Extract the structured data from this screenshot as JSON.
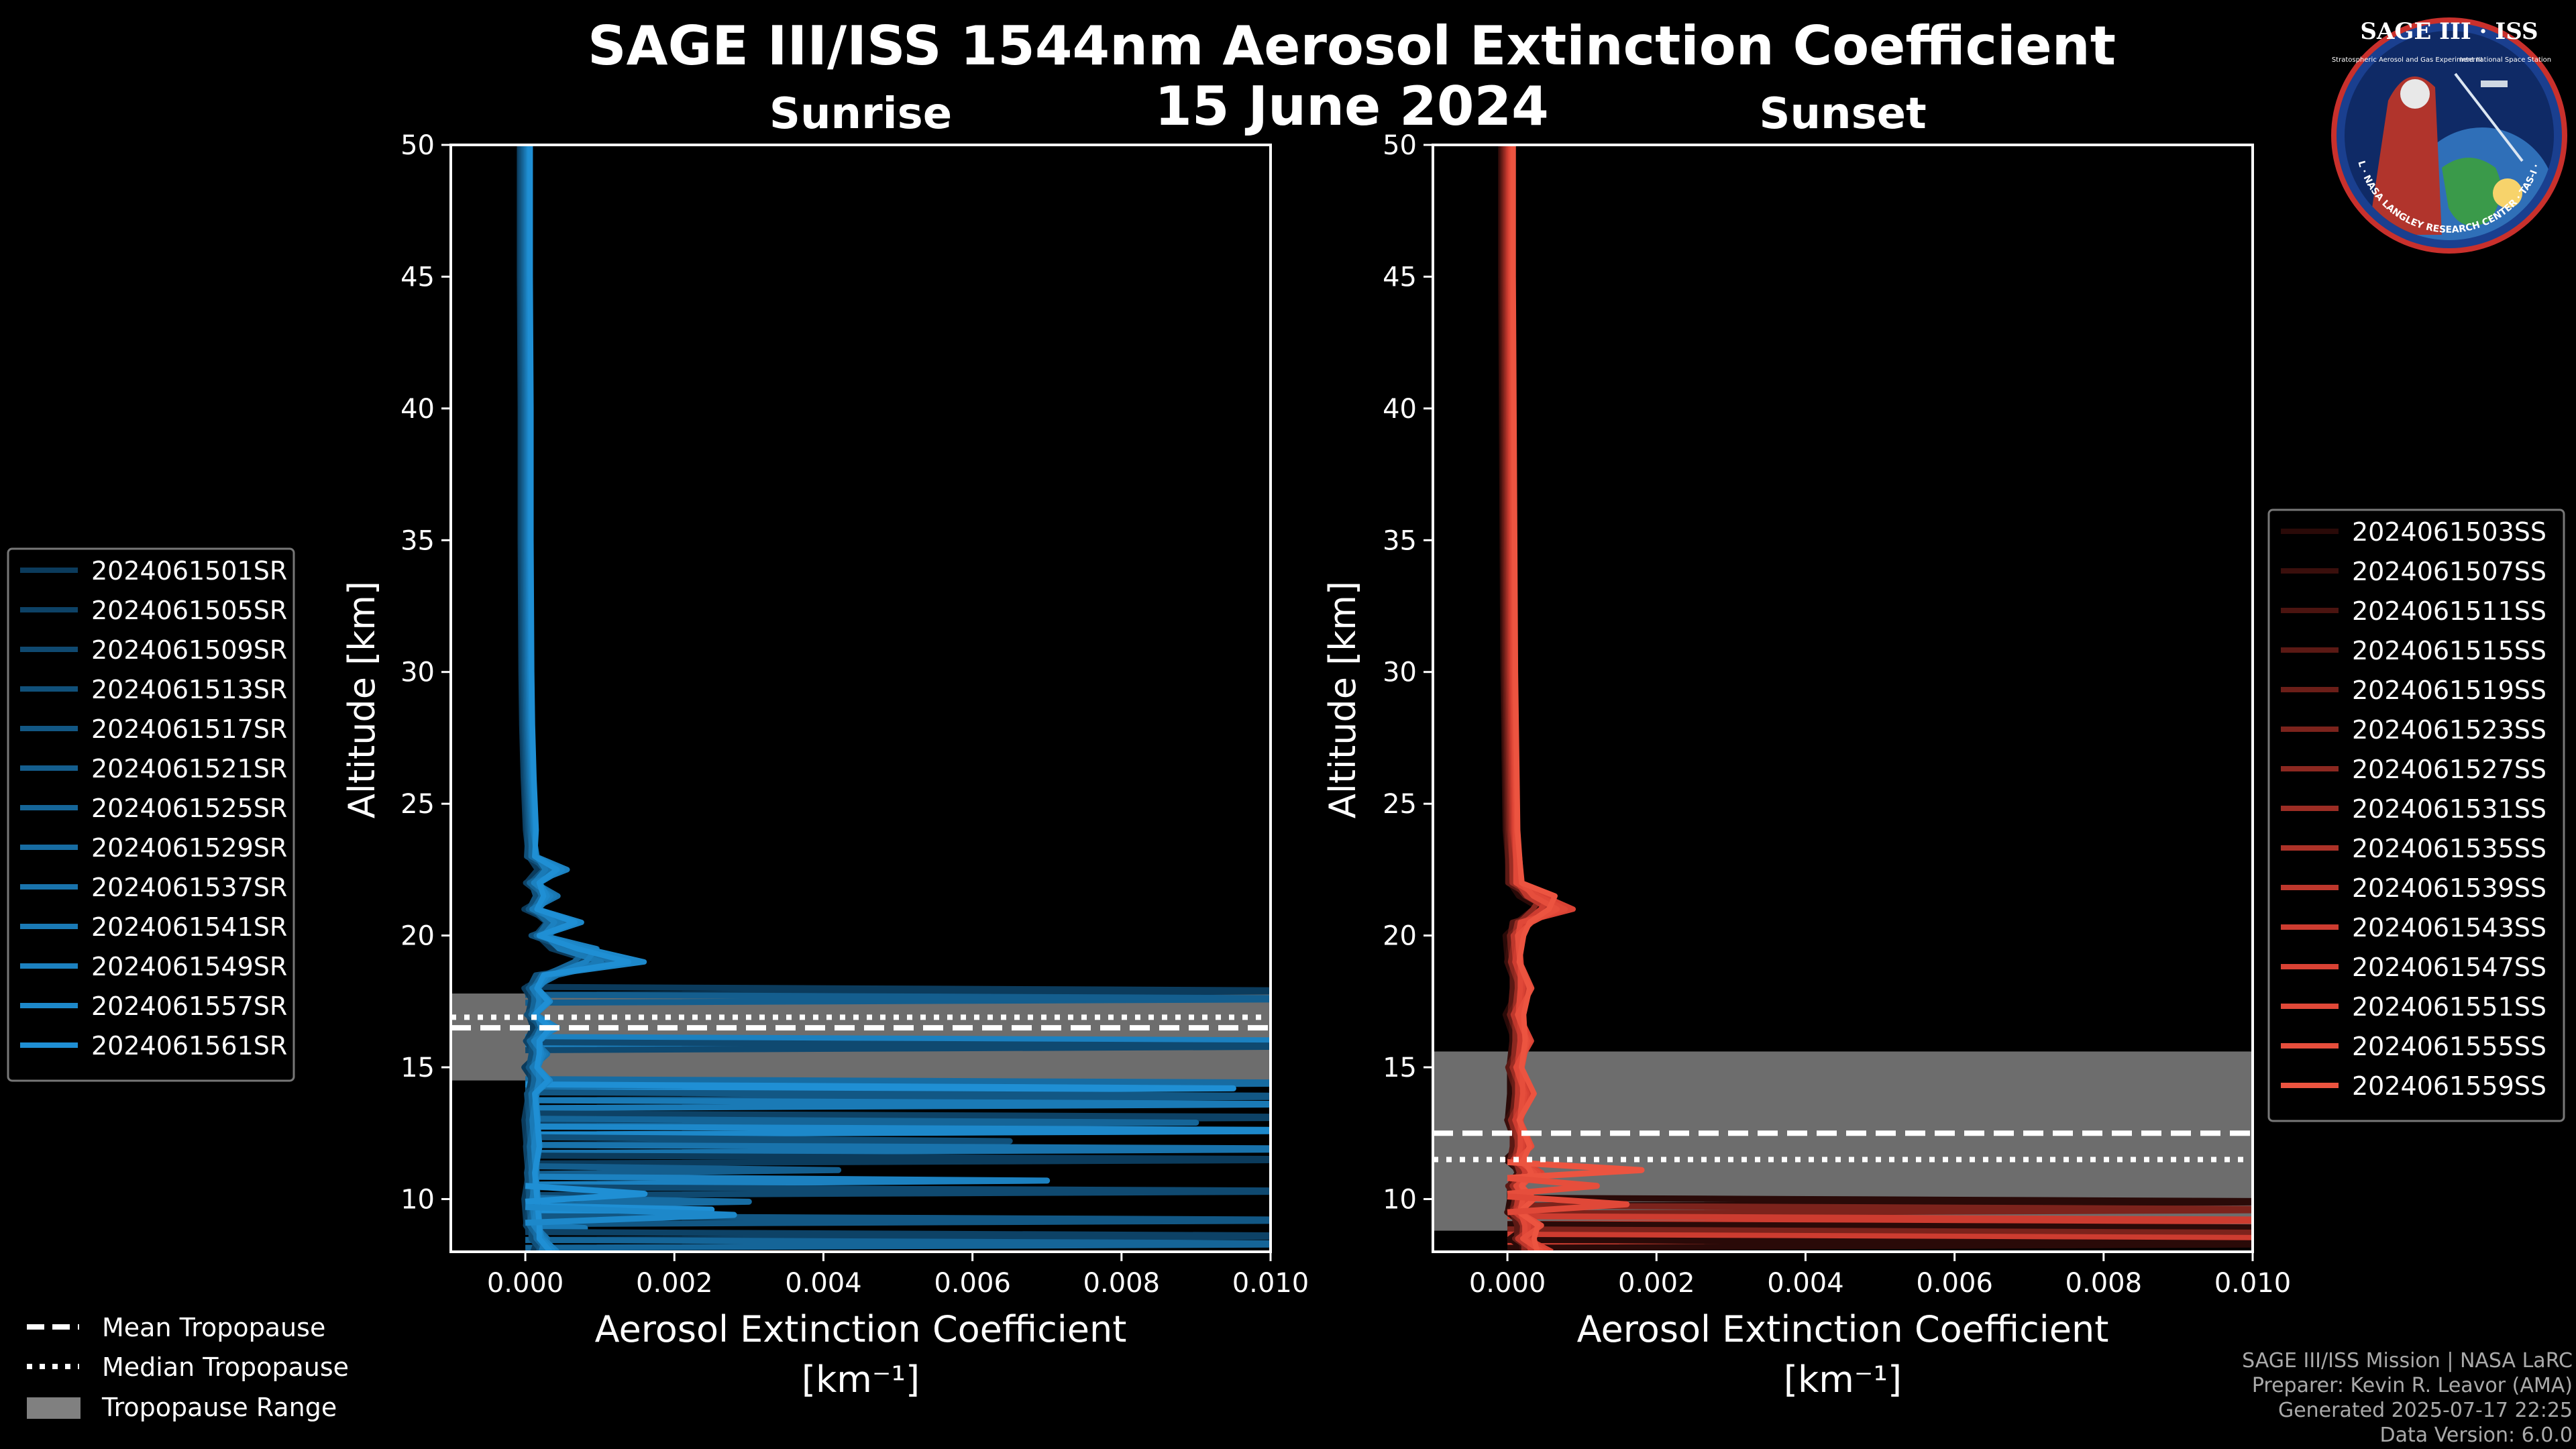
{
  "figure": {
    "title_line1": "SAGE III/ISS 1544nm Aerosol Extinction Coefficient",
    "title_line2": "15 June 2024",
    "logo": {
      "top_text": "SAGE III · ISS",
      "ring_text": "BALL · NASA LANGLEY RESEARCH CENTER · TAS-I · ESA",
      "small_left": "Stratospheric Aerosol and Gas Experiment III",
      "small_right": "International Space Station"
    },
    "credits": [
      "SAGE III/ISS Mission | NASA LaRC",
      "Preparer: Kevin R. Leavor (AMA)",
      "Generated 2025-07-17 22:25",
      "Data Version: 6.0.0"
    ],
    "shared_legend": [
      {
        "label": "Mean Tropopause",
        "style": "dashed"
      },
      {
        "label": "Median Tropopause",
        "style": "dotted"
      },
      {
        "label": "Tropopause Range",
        "style": "patch",
        "color": "#808080"
      }
    ]
  },
  "chart_data": [
    {
      "type": "line",
      "title": "Sunrise",
      "xlabel": "Aerosol Extinction Coefficient",
      "xunit": "[km⁻¹]",
      "ylabel": "Altitude [km]",
      "xlim": [
        -0.001,
        0.01
      ],
      "ylim": [
        8,
        50
      ],
      "xticks": [
        0.0,
        0.002,
        0.004,
        0.006,
        0.008,
        0.01
      ],
      "xtick_labels": [
        "0.000",
        "0.002",
        "0.004",
        "0.006",
        "0.008",
        "0.010"
      ],
      "yticks": [
        10,
        15,
        20,
        25,
        30,
        35,
        40,
        45,
        50
      ],
      "tropopause": {
        "mean": 16.5,
        "median": 16.9,
        "range": [
          14.5,
          17.8
        ]
      },
      "base_color": "#1b8fd4",
      "series_names": [
        "2024061501SR",
        "2024061505SR",
        "2024061509SR",
        "2024061513SR",
        "2024061517SR",
        "2024061521SR",
        "2024061525SR",
        "2024061529SR",
        "2024061537SR",
        "2024061541SR",
        "2024061549SR",
        "2024061557SR",
        "2024061561SR"
      ],
      "series_colors": [
        "#0b3b5c",
        "#0d4266",
        "#0f4970",
        "#10507a",
        "#125784",
        "#145e8e",
        "#156598",
        "#176ca2",
        "#1973ac",
        "#1a7ab6",
        "#1c81c0",
        "#1d88ca",
        "#1f8fd4"
      ],
      "profile": {
        "alt": [
          50,
          45,
          40,
          35,
          30,
          28,
          26,
          24,
          23,
          22.5,
          22,
          21.5,
          21,
          20.5,
          20,
          19.5,
          19,
          18.5,
          18,
          17.5,
          17,
          16.5,
          16,
          15.5,
          15,
          14.5,
          14,
          13,
          12,
          11,
          10,
          9,
          8.5,
          8
        ],
        "ext": [
          0.0,
          0.0,
          1e-05,
          1e-05,
          2e-05,
          3e-05,
          5e-05,
          8e-05,
          0.0001,
          0.0004,
          0.0001,
          0.0003,
          0.0001,
          0.0005,
          0.0002,
          0.0007,
          0.0011,
          0.0003,
          0.0001,
          0.0002,
          0.0001,
          0.0003,
          0.0001,
          0.0002,
          0.0001,
          0.0002,
          0.0001,
          0.0001,
          0.0001,
          0.0001,
          0.0001,
          0.0001,
          0.0002,
          0.0003
        ]
      },
      "excursions": [
        {
          "alt": 17.9,
          "ext": 0.012
        },
        {
          "alt": 17.6,
          "ext": 0.012
        },
        {
          "alt": 16.0,
          "ext": 0.012
        },
        {
          "alt": 15.8,
          "ext": 0.012
        },
        {
          "alt": 14.4,
          "ext": 0.012
        },
        {
          "alt": 14.2,
          "ext": 0.0095
        },
        {
          "alt": 13.9,
          "ext": 0.012
        },
        {
          "alt": 13.6,
          "ext": 0.011
        },
        {
          "alt": 13.1,
          "ext": 0.012
        },
        {
          "alt": 12.9,
          "ext": 0.009
        },
        {
          "alt": 12.6,
          "ext": 0.012
        },
        {
          "alt": 12.2,
          "ext": 0.0065
        },
        {
          "alt": 11.9,
          "ext": 0.012
        },
        {
          "alt": 11.5,
          "ext": 0.012
        },
        {
          "alt": 11.1,
          "ext": 0.0042
        },
        {
          "alt": 10.7,
          "ext": 0.007
        },
        {
          "alt": 10.3,
          "ext": 0.012
        },
        {
          "alt": 9.9,
          "ext": 0.003
        },
        {
          "alt": 9.6,
          "ext": 0.0025
        },
        {
          "alt": 9.2,
          "ext": 0.012
        },
        {
          "alt": 8.9,
          "ext": 0.0008
        },
        {
          "alt": 8.6,
          "ext": 0.012
        },
        {
          "alt": 8.3,
          "ext": 0.012
        }
      ],
      "spikes": [
        {
          "alt": 10.2,
          "ext": 0.0016
        },
        {
          "alt": 9.4,
          "ext": 0.0028
        }
      ]
    },
    {
      "type": "line",
      "title": "Sunset",
      "xlabel": "Aerosol Extinction Coefficient",
      "xunit": "[km⁻¹]",
      "ylabel": "Altitude [km]",
      "xlim": [
        -0.001,
        0.01
      ],
      "ylim": [
        8,
        50
      ],
      "xticks": [
        0.0,
        0.002,
        0.004,
        0.006,
        0.008,
        0.01
      ],
      "xtick_labels": [
        "0.000",
        "0.002",
        "0.004",
        "0.006",
        "0.008",
        "0.010"
      ],
      "yticks": [
        10,
        15,
        20,
        25,
        30,
        35,
        40,
        45,
        50
      ],
      "tropopause": {
        "mean": 12.5,
        "median": 11.5,
        "range": [
          8.8,
          15.6
        ]
      },
      "base_color": "#e8503e",
      "series_names": [
        "2024061503SS",
        "2024061507SS",
        "2024061511SS",
        "2024061515SS",
        "2024061519SS",
        "2024061523SS",
        "2024061527SS",
        "2024061531SS",
        "2024061535SS",
        "2024061539SS",
        "2024061543SS",
        "2024061547SS",
        "2024061551SS",
        "2024061555SS",
        "2024061559SS"
      ],
      "series_colors": [
        "#2a0a08",
        "#3a0f0c",
        "#4b1410",
        "#5b1914",
        "#6b1e18",
        "#7c231c",
        "#8c2820",
        "#9c2d24",
        "#ad3228",
        "#bd372c",
        "#cd3c30",
        "#d94234",
        "#e04838",
        "#e64e3c",
        "#ec5440"
      ],
      "profile": {
        "alt": [
          50,
          45,
          40,
          35,
          30,
          28,
          26,
          24,
          22,
          21.5,
          21,
          20.5,
          20,
          19,
          18,
          17,
          16,
          15,
          14,
          13,
          12,
          11.5,
          11,
          10.5,
          10,
          9.5,
          9,
          8.5,
          8
        ],
        "ext": [
          0.0,
          0.0,
          1e-05,
          2e-05,
          3e-05,
          4e-05,
          5e-05,
          6e-05,
          0.0001,
          0.0004,
          0.0006,
          0.0002,
          0.0001,
          0.0001,
          0.0002,
          0.0001,
          0.0002,
          0.0001,
          0.0002,
          0.0001,
          0.0002,
          0.0001,
          0.0003,
          0.0001,
          0.0002,
          0.0001,
          0.0003,
          0.0002,
          0.0004
        ]
      },
      "excursions": [
        {
          "alt": 9.9,
          "ext": 0.012
        },
        {
          "alt": 9.6,
          "ext": 0.012
        },
        {
          "alt": 9.2,
          "ext": 0.012
        },
        {
          "alt": 8.9,
          "ext": 0.012
        },
        {
          "alt": 8.7,
          "ext": 0.012
        },
        {
          "alt": 8.5,
          "ext": 0.012
        },
        {
          "alt": 8.3,
          "ext": 0.012
        }
      ],
      "spikes": [
        {
          "alt": 11.1,
          "ext": 0.0018
        },
        {
          "alt": 10.5,
          "ext": 0.0012
        },
        {
          "alt": 9.8,
          "ext": 0.0016
        }
      ]
    }
  ]
}
